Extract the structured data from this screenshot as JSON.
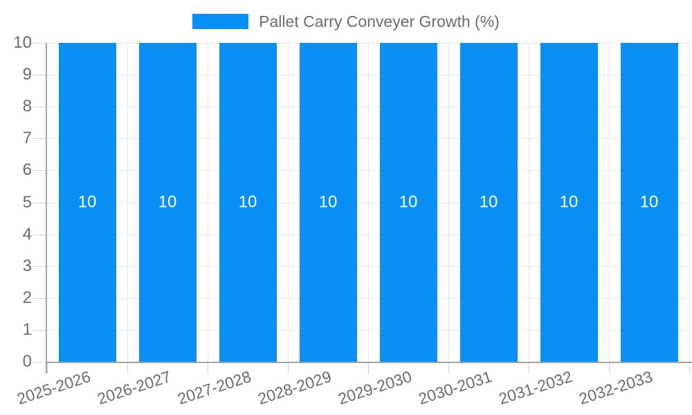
{
  "legend": {
    "label": "Pallet Carry Conveyer Growth (%)",
    "swatch_color": "#0a8ff5"
  },
  "chart_data": {
    "type": "bar",
    "title": "Pallet Carry Conveyer Growth (%)",
    "categories": [
      "2025-2026",
      "2026-2027",
      "2027-2028",
      "2028-2029",
      "2029-2030",
      "2030-2031",
      "2031-2032",
      "2032-2033"
    ],
    "series": [
      {
        "name": "Pallet Carry Conveyer Growth (%)",
        "values": [
          10,
          10,
          10,
          10,
          10,
          10,
          10,
          10
        ]
      }
    ],
    "bar_labels": [
      "10",
      "10",
      "10",
      "10",
      "10",
      "10",
      "10",
      "10"
    ],
    "xlabel": "",
    "ylabel": "",
    "ylim": [
      0,
      10
    ],
    "yticks": [
      0,
      1,
      2,
      3,
      4,
      5,
      6,
      7,
      8,
      9,
      10
    ],
    "grid": true,
    "legend_position": "top-center",
    "x_label_rotation_deg": -18,
    "colors": {
      "bar": "#0a8ff5",
      "bar_label_text": "#ffffff",
      "axis_line": "#a3a3a3",
      "grid_line": "#e6e6e6",
      "tick_mark": "#d2d2d2",
      "axis_text": "#6b6b6b"
    }
  }
}
